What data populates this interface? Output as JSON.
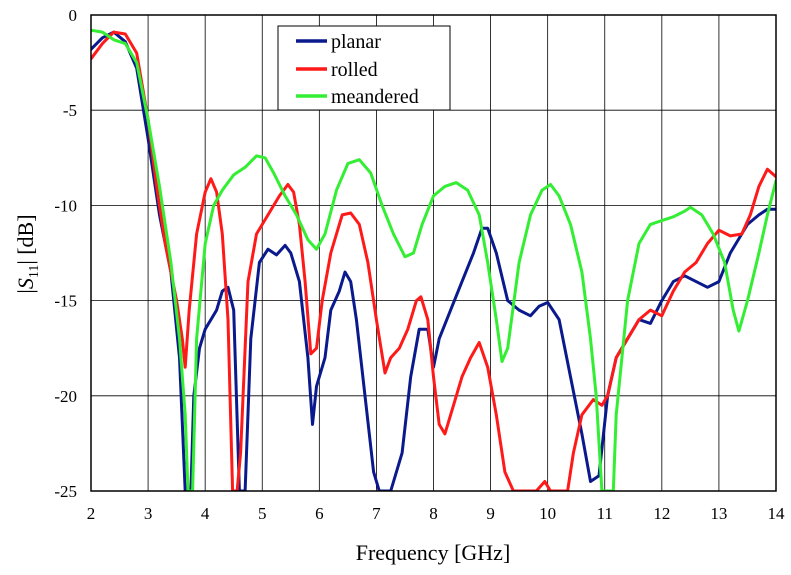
{
  "chart_data": {
    "type": "line",
    "xlabel": "Frequency [GHz]",
    "ylabel_prefix": "|",
    "ylabel_symbol": "S",
    "ylabel_subscript": "11",
    "ylabel_suffix": "| [dB]",
    "xlim": [
      2,
      14
    ],
    "ylim": [
      -25,
      0
    ],
    "xticks": [
      2,
      3,
      4,
      5,
      6,
      7,
      8,
      9,
      10,
      11,
      12,
      13,
      14
    ],
    "yticks": [
      0,
      -5,
      -10,
      -15,
      -20,
      -25
    ],
    "xtick_labels": [
      "2",
      "3",
      "4",
      "5",
      "6",
      "7",
      "8",
      "9",
      "10",
      "11",
      "12",
      "13",
      "14"
    ],
    "ytick_labels": [
      "0",
      "-5",
      "-10",
      "-15",
      "-20",
      "-25"
    ],
    "grid": true,
    "legend_position": "top-center",
    "series": [
      {
        "name": "planar",
        "color": "#0a1a8c",
        "points": [
          [
            2.0,
            -1.8
          ],
          [
            2.2,
            -1.2
          ],
          [
            2.4,
            -0.9
          ],
          [
            2.6,
            -1.4
          ],
          [
            2.8,
            -2.8
          ],
          [
            3.0,
            -6.5
          ],
          [
            3.2,
            -10.5
          ],
          [
            3.4,
            -13.5
          ],
          [
            3.55,
            -18
          ],
          [
            3.65,
            -25
          ],
          [
            3.75,
            -25
          ],
          [
            3.8,
            -20
          ],
          [
            3.9,
            -17.5
          ],
          [
            4.0,
            -16.5
          ],
          [
            4.2,
            -15.5
          ],
          [
            4.3,
            -14.5
          ],
          [
            4.4,
            -14.3
          ],
          [
            4.5,
            -15.5
          ],
          [
            4.6,
            -25
          ],
          [
            4.7,
            -25
          ],
          [
            4.8,
            -17
          ],
          [
            4.95,
            -13
          ],
          [
            5.1,
            -12.3
          ],
          [
            5.25,
            -12.6
          ],
          [
            5.4,
            -12.1
          ],
          [
            5.5,
            -12.5
          ],
          [
            5.65,
            -14
          ],
          [
            5.8,
            -18
          ],
          [
            5.88,
            -21.5
          ],
          [
            5.95,
            -19.5
          ],
          [
            6.1,
            -18
          ],
          [
            6.2,
            -15.5
          ],
          [
            6.35,
            -14.5
          ],
          [
            6.45,
            -13.5
          ],
          [
            6.55,
            -14
          ],
          [
            6.65,
            -16
          ],
          [
            6.8,
            -20
          ],
          [
            6.95,
            -24
          ],
          [
            7.05,
            -25
          ],
          [
            7.25,
            -25
          ],
          [
            7.35,
            -24
          ],
          [
            7.45,
            -23
          ],
          [
            7.6,
            -19
          ],
          [
            7.75,
            -16.5
          ],
          [
            7.9,
            -16.5
          ],
          [
            8.0,
            -18.5
          ],
          [
            8.1,
            -17
          ],
          [
            8.3,
            -15.5
          ],
          [
            8.5,
            -14
          ],
          [
            8.7,
            -12.5
          ],
          [
            8.85,
            -11.2
          ],
          [
            8.95,
            -11.2
          ],
          [
            9.1,
            -12.5
          ],
          [
            9.3,
            -15
          ],
          [
            9.5,
            -15.5
          ],
          [
            9.7,
            -15.8
          ],
          [
            9.85,
            -15.3
          ],
          [
            10.0,
            -15.1
          ],
          [
            10.2,
            -16
          ],
          [
            10.4,
            -19
          ],
          [
            10.6,
            -22
          ],
          [
            10.75,
            -24.5
          ],
          [
            10.9,
            -24.2
          ],
          [
            11.05,
            -20
          ],
          [
            11.2,
            -18
          ],
          [
            11.4,
            -17
          ],
          [
            11.6,
            -16
          ],
          [
            11.8,
            -16.2
          ],
          [
            12.0,
            -15
          ],
          [
            12.2,
            -14
          ],
          [
            12.4,
            -13.7
          ],
          [
            12.6,
            -14
          ],
          [
            12.8,
            -14.3
          ],
          [
            13.0,
            -14
          ],
          [
            13.2,
            -12.5
          ],
          [
            13.5,
            -11
          ],
          [
            13.7,
            -10.5
          ],
          [
            13.85,
            -10.2
          ],
          [
            14.0,
            -10.2
          ]
        ]
      },
      {
        "name": "rolled",
        "color": "#ff1a1a",
        "points": [
          [
            2.0,
            -2.3
          ],
          [
            2.2,
            -1.5
          ],
          [
            2.4,
            -0.9
          ],
          [
            2.6,
            -1.0
          ],
          [
            2.8,
            -2.0
          ],
          [
            3.0,
            -5.5
          ],
          [
            3.15,
            -9
          ],
          [
            3.3,
            -12
          ],
          [
            3.5,
            -15
          ],
          [
            3.6,
            -17
          ],
          [
            3.65,
            -18.5
          ],
          [
            3.72,
            -15.5
          ],
          [
            3.85,
            -11.5
          ],
          [
            4.0,
            -9.3
          ],
          [
            4.1,
            -8.6
          ],
          [
            4.2,
            -9.3
          ],
          [
            4.3,
            -11.5
          ],
          [
            4.4,
            -16
          ],
          [
            4.48,
            -25
          ],
          [
            4.56,
            -25
          ],
          [
            4.62,
            -23
          ],
          [
            4.75,
            -14
          ],
          [
            4.9,
            -11.5
          ],
          [
            5.1,
            -10.5
          ],
          [
            5.3,
            -9.5
          ],
          [
            5.45,
            -8.9
          ],
          [
            5.55,
            -9.3
          ],
          [
            5.65,
            -11
          ],
          [
            5.75,
            -14
          ],
          [
            5.85,
            -17.8
          ],
          [
            5.95,
            -17.5
          ],
          [
            6.05,
            -15
          ],
          [
            6.2,
            -12.5
          ],
          [
            6.4,
            -10.5
          ],
          [
            6.55,
            -10.4
          ],
          [
            6.7,
            -11
          ],
          [
            6.85,
            -13
          ],
          [
            7.0,
            -16
          ],
          [
            7.15,
            -18.8
          ],
          [
            7.25,
            -18
          ],
          [
            7.4,
            -17.5
          ],
          [
            7.55,
            -16.5
          ],
          [
            7.7,
            -15
          ],
          [
            7.78,
            -14.8
          ],
          [
            7.9,
            -16
          ],
          [
            8.0,
            -19
          ],
          [
            8.1,
            -21.5
          ],
          [
            8.2,
            -22
          ],
          [
            8.35,
            -20.5
          ],
          [
            8.5,
            -19
          ],
          [
            8.65,
            -18
          ],
          [
            8.8,
            -17.2
          ],
          [
            8.95,
            -18.5
          ],
          [
            9.1,
            -21
          ],
          [
            9.25,
            -24
          ],
          [
            9.4,
            -25
          ],
          [
            9.8,
            -25
          ],
          [
            9.95,
            -24.5
          ],
          [
            10.05,
            -25
          ],
          [
            10.35,
            -25
          ],
          [
            10.45,
            -23
          ],
          [
            10.6,
            -21
          ],
          [
            10.8,
            -20.2
          ],
          [
            10.95,
            -20.5
          ],
          [
            11.05,
            -20
          ],
          [
            11.2,
            -18
          ],
          [
            11.4,
            -17
          ],
          [
            11.6,
            -16
          ],
          [
            11.8,
            -15.5
          ],
          [
            12.0,
            -15.8
          ],
          [
            12.2,
            -14.5
          ],
          [
            12.4,
            -13.5
          ],
          [
            12.6,
            -13
          ],
          [
            12.8,
            -12
          ],
          [
            13.0,
            -11.3
          ],
          [
            13.2,
            -11.6
          ],
          [
            13.4,
            -11.5
          ],
          [
            13.55,
            -10.5
          ],
          [
            13.7,
            -9
          ],
          [
            13.85,
            -8.1
          ],
          [
            14.0,
            -8.5
          ]
        ]
      },
      {
        "name": "meandered",
        "color": "#33ee33",
        "points": [
          [
            2.0,
            -0.8
          ],
          [
            2.2,
            -0.9
          ],
          [
            2.4,
            -1.3
          ],
          [
            2.6,
            -1.5
          ],
          [
            2.8,
            -2.5
          ],
          [
            3.0,
            -5.5
          ],
          [
            3.2,
            -9
          ],
          [
            3.4,
            -13
          ],
          [
            3.55,
            -17
          ],
          [
            3.65,
            -21
          ],
          [
            3.7,
            -25
          ],
          [
            3.78,
            -25
          ],
          [
            3.85,
            -17
          ],
          [
            4.0,
            -12
          ],
          [
            4.15,
            -10
          ],
          [
            4.3,
            -9.2
          ],
          [
            4.5,
            -8.4
          ],
          [
            4.7,
            -8
          ],
          [
            4.9,
            -7.4
          ],
          [
            5.05,
            -7.5
          ],
          [
            5.2,
            -8.3
          ],
          [
            5.4,
            -9.5
          ],
          [
            5.6,
            -10.5
          ],
          [
            5.8,
            -11.8
          ],
          [
            5.95,
            -12.3
          ],
          [
            6.1,
            -11.5
          ],
          [
            6.3,
            -9.2
          ],
          [
            6.5,
            -7.8
          ],
          [
            6.7,
            -7.6
          ],
          [
            6.9,
            -8.3
          ],
          [
            7.1,
            -10
          ],
          [
            7.3,
            -11.5
          ],
          [
            7.5,
            -12.7
          ],
          [
            7.65,
            -12.5
          ],
          [
            7.8,
            -11
          ],
          [
            8.0,
            -9.5
          ],
          [
            8.2,
            -9.0
          ],
          [
            8.4,
            -8.8
          ],
          [
            8.6,
            -9.2
          ],
          [
            8.8,
            -10.5
          ],
          [
            8.95,
            -13
          ],
          [
            9.1,
            -16
          ],
          [
            9.2,
            -18.2
          ],
          [
            9.3,
            -17.5
          ],
          [
            9.5,
            -13
          ],
          [
            9.7,
            -10.5
          ],
          [
            9.9,
            -9.2
          ],
          [
            10.05,
            -8.9
          ],
          [
            10.2,
            -9.5
          ],
          [
            10.4,
            -11
          ],
          [
            10.6,
            -13.5
          ],
          [
            10.75,
            -17
          ],
          [
            10.85,
            -20
          ],
          [
            10.95,
            -25
          ],
          [
            11.15,
            -25
          ],
          [
            11.2,
            -21
          ],
          [
            11.4,
            -15
          ],
          [
            11.6,
            -12
          ],
          [
            11.8,
            -11
          ],
          [
            12.0,
            -10.8
          ],
          [
            12.2,
            -10.6
          ],
          [
            12.4,
            -10.3
          ],
          [
            12.5,
            -10.1
          ],
          [
            12.7,
            -10.5
          ],
          [
            12.9,
            -11.5
          ],
          [
            13.1,
            -13
          ],
          [
            13.25,
            -15.5
          ],
          [
            13.35,
            -16.6
          ],
          [
            13.5,
            -15
          ],
          [
            13.7,
            -12.5
          ],
          [
            13.85,
            -10.5
          ],
          [
            14.0,
            -8.7
          ]
        ]
      }
    ]
  }
}
